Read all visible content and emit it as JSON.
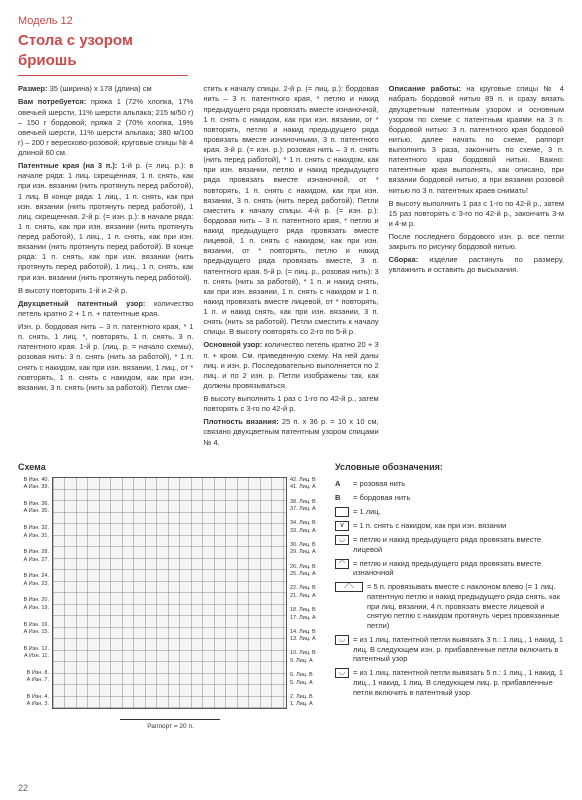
{
  "header": {
    "model": "Модель 12",
    "title": "Стола с узором бриошь"
  },
  "col1": {
    "p1_label": "Размер:",
    "p1": " 35 (ширина) х 178 (длина) см",
    "p2_label": "Вам потребуется:",
    "p2": " пряжа 1 (72% хлопка, 17% овечьей шерсти, 11% шерсти альпака; 215 м/50 г) – 150 г бордовой; пряжа 2 (70% хлопка, 19% овечьей шерсти, 11% шерсти альпака; 380 м/100 г) – 200 г вересково-розовой; круговые спицы № 4 длиной 60 см.",
    "p3_label": "Патентные края (на 3 п.):",
    "p3a": " 1-й р. (= лиц. р.): в начале ряда: 1 лиц. скрещенная, 1 п. снять, как при изн. вязании (нить протянуть перед работой), 1 лиц. В конце ряда: 1 лиц., 1 п. снять, как при изн. вязании (нить протянуть перед работой), 1 лиц. скрещенная. 2-й р. (= изн. р.): в начале ряда: 1 п. снять, как при изн. вязании (нить протянуть перед работой), 1 лиц., 1 п. снять, как при изн. вязании (нить протянуть перед работой). В конце ряда: 1 п. снять, как при изн. вязании (нить протянуть перед работой), 1 лиц., 1 п. снять, как при изн. вязании (нить протянуть перед работой).",
    "p4": "В высоту повторять 1-й и 2-й р.",
    "p5_label": "Двухцветный патентный узор:",
    "p5": " количество петель кратно 2 + 1 п. + патентные края.",
    "p6": "Изн. р. бордовая нить – 3 п. патентного края, * 1 п. снять, 1 лиц. *, повторять, 1 п. снять, 3 п. патентного края. 1-й р. (лиц. р. = начало схемы), розовая нить: 3 п. снять (нить за работой), * 1 п. снять с накидом, как при изн. вязании, 1 лиц., от * повторять, 1 п. снять с накидом, как при изн. вязании, 3 п. снять (нить за работой). Петли сме-"
  },
  "col2": {
    "p1": "стить к началу спицы. 2-й р. (= лиц. р.): бордовая нить – 3 п. патентного края, * петлю и накид предыдущего ряда провязать вместе изнаночной, 1 п. снять с накидом, как при изн. вязании, от * повторять, петлю и накид предыдущего ряда провязать вместе изнаночными, 3 п. патентного края. 3-й р. (= изн. р.): розовая нить – 3 п. снять (нить перед работой), * 1 п. снять с накидом, как при изн. вязании, петлю и накид предыдущего ряда провязать вместе изнаночной, от * повторять, 1 п. снять с накидом, как при изн. вязании, 3 п. снять (нить перед работой). Петли сместить к началу спицы. 4-й р. (= изн. р.): бордовая нить – 3 п. патентного края, * петлю и накид предыдущего ряда провязать вместе лицевой, 1 п. снять с накидом, как при изн. вязании, от * повторять, петлю и накид предыдущего ряда провязать вместе, 3 п. патентного края. 5-й р. (= лиц. р., розовая нить): 3 п. снять (нить за работой), * 1 п. и накид снять, как при изн. вязании, 1 п. снять с накидом и 1 п. накид провязать вместе лицевой, от * повторять, 1 п. и накид снять, как при изн. вязании, 3 п. снять (нить за работой). Петли сместить к началу спицы. В высоту повторять со 2-го по 5-й р.",
    "p2_label": "Основной узор:",
    "p2": " количество петель кратно 20 + 3 п. + кром. См. приведенную схему. На ней даны лиц. и изн. р. Последовательно выполняется по 2 лиц. и по 2 изн. р. Петли изображены так, как должны провязываться.",
    "p3": "В высоту выполнить 1 раз с 1-го по 42-й р., затем повторять с 3-го по 42-й р.",
    "p4_label": "Плотность вязания:",
    "p4": " 25 п. х 36 р. = 10 х 10 см, связано двухцветным патентным узором спицами № 4."
  },
  "col3": {
    "p1_label": "Описание работы:",
    "p1": " на круговые спицы № 4 набрать бордовой нитью 89 п. и сразу вязать двухцветным патентным узором и основным узором по схеме с патентным краями на 3 п. бордовой нитью: 3 п. патентного края бордовой нитью, далее начать по схеме, раппорт выполнить 3 раза, закончить по схеме, 3 п. патентного края бордовой нитью. Важно: патентные края выполнять, как описано, при вязании бордовой нитью, а при вязании розовой нитью по 3 п. патентных краев снимать!",
    "p2": "В высоту выполнить 1 раз с 1-го по 42-й р., затем 15 раз повторять с 3-го по 42-й р., закончить 3-м и 4-м р.",
    "p3": "После последнего бордового изн. р. все петли закрыть по рисунку бордовой нитью.",
    "p4_label": "Сборка:",
    "p4": " изделие растянуть по размеру, увлажнить и оставить до высыхания."
  },
  "schema": {
    "title": "Схема",
    "left_labels": [
      "В Изн. 40.\nА Изн. 39.",
      "В Изн. 36.\nА Изн. 35.",
      "В Изн. 32.\nА Изн. 31.",
      "В Изн. 28.\nА Изн. 27.",
      "В Изн. 24.\nА Изн. 23.",
      "В Изн. 20.\nА Изн. 19.",
      "В Изн. 16.\nА Изн. 15.",
      "В Изн. 12.\nА Изн. 11.",
      "В Изн. 8.\nА Изн. 7.",
      "В Изн. 4.\nА Изн. 3."
    ],
    "right_labels": [
      "42. Лиц. В\n41. Лиц. А",
      "38. Лиц. В\n37. Лиц. А",
      "34. Лиц. В\n33. Лиц. А",
      "30. Лиц. В\n29. Лиц. А",
      "26. Лиц. В\n25. Лиц. А",
      "22. Лиц. В\n21. Лиц. А",
      "18. Лиц. В\n17. Лиц. А",
      "14. Лиц. В\n13. Лиц. А",
      "10. Лиц. В\n9. Лиц. А",
      "6. Лиц. В\n5. Лиц. А",
      "2. Лиц. В\n1. Лиц. А"
    ],
    "rapport": "Раппорт = 20 п."
  },
  "legend": {
    "title": "Условные обозначения:",
    "items": [
      {
        "sym": "A",
        "text": "= розовая нить",
        "symtype": "text"
      },
      {
        "sym": "B",
        "text": "= бордовая нить",
        "symtype": "text"
      },
      {
        "sym": "",
        "text": "= 1 лиц.",
        "symtype": "box"
      },
      {
        "sym": "∨",
        "text": "= 1 п. снять с накидом, как при изн. вязании",
        "symtype": "box"
      },
      {
        "sym": "◡",
        "text": "= петлю и накид предыдущего ряда провязать вместе лицевой",
        "symtype": "box"
      },
      {
        "sym": "◠",
        "text": "= петлю и накид предыдущего ряда провязать вместе изнаночной",
        "symtype": "box"
      },
      {
        "sym": "⟋⟍",
        "text": "= 5 п. провязывать вместе с наклоном влево (= 1 лиц. патентную петлю и накид предыдущего ряда снять, как при лиц. вязании, 4 п. провязать вместе лицевой и снятую петлю с накидом протянуть через провязанные петли)",
        "symtype": "wide"
      },
      {
        "sym": "◡",
        "text": "= из 1 лиц. патентной петли вывязать 3 п.: 1 лиц., 1 накид, 1 лиц. В следующем изн. р. прибавленные петли включить в патентный узор",
        "symtype": "box"
      },
      {
        "sym": "◡",
        "text": "= из 1 лиц. патентной петли вывязать 5 п.: 1 лиц., 1 накид, 1 лиц., 1 накид, 1 лиц. В следующем лиц. р. прибавленные петли включить в патентный узор",
        "symtype": "box"
      }
    ]
  },
  "pagenum": "22"
}
